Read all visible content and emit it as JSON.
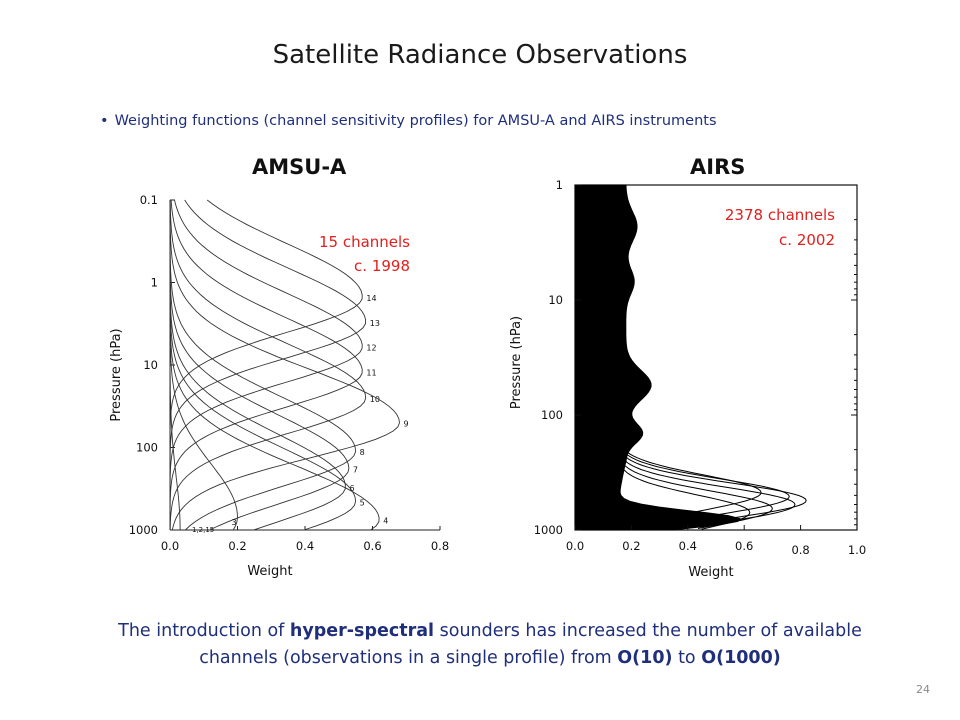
{
  "slide": {
    "title": "Satellite Radiance Observations",
    "bullet": "Weighting functions (channel sensitivity profiles) for AMSU-A and AIRS instruments",
    "summary": {
      "part1": "The introduction of ",
      "bold1": "hyper-spectral",
      "part2": " sounders has increased the number of available channels (observations in a single profile) from ",
      "bold2": "O(10)",
      "part3": " to ",
      "bold3": "O(1000)"
    },
    "page_number": "24"
  },
  "chart_data": [
    {
      "type": "line",
      "title": "AMSU-A",
      "xlabel": "Weight",
      "ylabel": "Pressure (hPa)",
      "xlim": [
        0,
        0.8
      ],
      "ylim": [
        1000,
        0.1
      ],
      "yscale": "log",
      "x_ticks": [
        "0.0",
        "0.2",
        "0.4",
        "0.6",
        "0.8"
      ],
      "y_ticks": [
        "0.1",
        "1",
        "10",
        "100",
        "1000"
      ],
      "annotation": [
        "15 channels",
        "c. 1998"
      ],
      "channel_labels": [
        "14",
        "13",
        "12",
        "11",
        "10",
        "9",
        "8",
        "7",
        "6",
        "5",
        "4",
        "3",
        "1,2,15"
      ],
      "series": [
        {
          "name": "14",
          "peak_pressure": 1.5,
          "peak_weight": 0.57
        },
        {
          "name": "13",
          "peak_pressure": 3,
          "peak_weight": 0.58
        },
        {
          "name": "12",
          "peak_pressure": 6,
          "peak_weight": 0.57
        },
        {
          "name": "11",
          "peak_pressure": 12,
          "peak_weight": 0.57
        },
        {
          "name": "10",
          "peak_pressure": 25,
          "peak_weight": 0.58
        },
        {
          "name": "9",
          "peak_pressure": 50,
          "peak_weight": 0.68
        },
        {
          "name": "8",
          "peak_pressure": 110,
          "peak_weight": 0.55
        },
        {
          "name": "7",
          "peak_pressure": 180,
          "peak_weight": 0.53
        },
        {
          "name": "6",
          "peak_pressure": 300,
          "peak_weight": 0.52
        },
        {
          "name": "5",
          "peak_pressure": 450,
          "peak_weight": 0.55
        },
        {
          "name": "4",
          "peak_pressure": 750,
          "peak_weight": 0.62
        },
        {
          "name": "3",
          "peak_pressure": 700,
          "peak_weight": 0.2
        },
        {
          "name": "1,2,15",
          "peak_pressure": 1000,
          "peak_weight": 0.03
        }
      ],
      "grid": false
    },
    {
      "type": "line",
      "title": "AIRS",
      "xlabel": "Weight",
      "ylabel": "Pressure (hPa)",
      "xlim": [
        0,
        1.0
      ],
      "ylim": [
        1000,
        1
      ],
      "yscale": "log",
      "x_ticks": [
        "0.0",
        "0.2",
        "0.4",
        "0.6",
        "0.8",
        "1.0"
      ],
      "y_ticks": [
        "1",
        "10",
        "100",
        "1000"
      ],
      "annotation": [
        "2378 channels",
        "c. 2002"
      ],
      "channel_count": 2378,
      "grid": false
    }
  ]
}
